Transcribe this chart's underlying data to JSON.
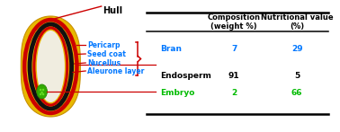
{
  "hull_label": "Hull",
  "layers": [
    {
      "name": "Pericarp",
      "color": "#0077ff"
    },
    {
      "name": "Seed coat",
      "color": "#0077ff"
    },
    {
      "name": "Nucellus",
      "color": "#0077ff"
    },
    {
      "name": "Aleurone layer",
      "color": "#0077ff"
    }
  ],
  "col1_header": "Composition\n(weight %)",
  "col2_header": "Nutritional value\n(%)",
  "table_data": [
    {
      "row": "Bran",
      "col1": "7",
      "col2": "29",
      "row_color": "#0077ff",
      "val_color": "#0077ff"
    },
    {
      "row": "Endosperm",
      "col1": "91",
      "col2": "5",
      "row_color": "#000000",
      "val_color": "#000000"
    },
    {
      "row": "Embryo",
      "col1": "2",
      "col2": "66",
      "row_color": "#00bb00",
      "val_color": "#00bb00"
    }
  ],
  "grain_yellow": "#e8b800",
  "grain_yellow_edge": "#c89000",
  "red_color": "#cc0000",
  "black_color": "#111111",
  "green_color": "#33aa00",
  "endosperm_fill": "#f0ede0",
  "background_color": "#ffffff",
  "line_color": "#cc0000"
}
